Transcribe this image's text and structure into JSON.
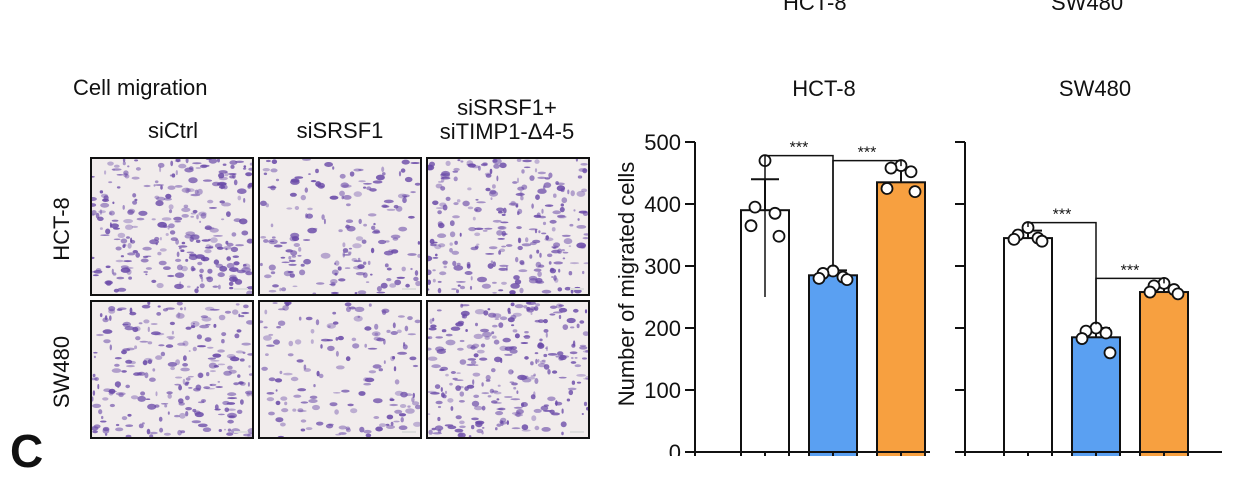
{
  "header": {
    "top_left_label": "HCT-8",
    "top_right_label": "SW480",
    "corner_letter": "C"
  },
  "micrographs": {
    "title": "Cell migration",
    "columns": [
      "siCtrl",
      "siSRSF1",
      "siSRSF1+\nsiTIMP1-Δ4-5"
    ],
    "rows": [
      "HCT-8",
      "SW480"
    ],
    "stain_color": "#6a4aa8",
    "background_color": "#f1ecec",
    "density": [
      [
        0.85,
        0.45,
        0.75
      ],
      [
        0.7,
        0.35,
        0.8
      ]
    ]
  },
  "chart_data": {
    "type": "bar",
    "ylabel": "Number of migrated cells",
    "ylim": [
      0,
      500
    ],
    "yticks": [
      0,
      100,
      200,
      300,
      400,
      500
    ],
    "groups": [
      "siCtrl",
      "siSRSF1",
      "siSRSF1+siTIMP1-Δ4-5"
    ],
    "colors": [
      "#ffffff",
      "#5aa0f2",
      "#f7a040"
    ],
    "significance_label": "***",
    "panels": [
      {
        "title": "HCT-8",
        "means": [
          390,
          285,
          435
        ],
        "sd": [
          50,
          8,
          20
        ],
        "points": [
          [
            470,
            395,
            385,
            365,
            348
          ],
          [
            292,
            288,
            282,
            280,
            278
          ],
          [
            462,
            458,
            452,
            425,
            420
          ]
        ],
        "brackets": [
          [
            0,
            1
          ],
          [
            1,
            2
          ]
        ]
      },
      {
        "title": "SW480",
        "means": [
          345,
          185,
          258
        ],
        "sd": [
          12,
          15,
          8
        ],
        "points": [
          [
            362,
            350,
            345,
            343,
            340
          ],
          [
            200,
            195,
            192,
            183,
            160
          ],
          [
            272,
            268,
            262,
            258,
            255
          ]
        ],
        "brackets": [
          [
            0,
            1
          ],
          [
            1,
            2
          ]
        ]
      }
    ]
  }
}
